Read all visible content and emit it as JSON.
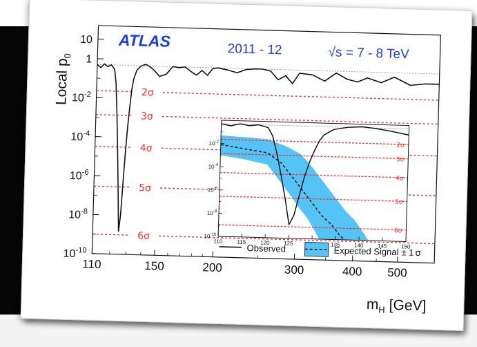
{
  "chart_data": [
    {
      "type": "line",
      "title": "",
      "experiment": "ATLAS",
      "period": "2011 - 12",
      "energy": "√s = 7 - 8 TeV",
      "xlabel": "m_H [GeV]",
      "xlabel_main": "m",
      "xlabel_sub": "H",
      "xlabel_unit": " [GeV]",
      "ylabel": "Local p_0",
      "ylabel_main": "Local p",
      "ylabel_sub": "0",
      "xscale": "log",
      "yscale": "log",
      "xlim": [
        110,
        600
      ],
      "ylim": [
        1e-10,
        50
      ],
      "x_ticks": [
        {
          "value": 110,
          "label": "110"
        },
        {
          "value": 150,
          "label": "150"
        },
        {
          "value": 200,
          "label": "200"
        },
        {
          "value": 300,
          "label": "300"
        },
        {
          "value": 400,
          "label": "400"
        },
        {
          "value": 500,
          "label": "500"
        }
      ],
      "y_ticks": [
        {
          "value": 10,
          "base": "10",
          "exp": ""
        },
        {
          "value": 1,
          "base": "1",
          "exp": ""
        },
        {
          "value": 0.01,
          "base": "10",
          "exp": "-2"
        },
        {
          "value": 0.0001,
          "base": "10",
          "exp": "-4"
        },
        {
          "value": 1e-06,
          "base": "10",
          "exp": "-6"
        },
        {
          "value": 1e-08,
          "base": "10",
          "exp": "-8"
        },
        {
          "value": 1e-10,
          "base": "10",
          "exp": "-10"
        }
      ],
      "sigma_lines": [
        {
          "label": "2σ",
          "p": 0.0228
        },
        {
          "label": "3σ",
          "p": 0.00135
        },
        {
          "label": "4σ",
          "p": 3.17e-05
        },
        {
          "label": "5σ",
          "p": 2.87e-07
        },
        {
          "label": "6σ",
          "p": 9.9e-10
        }
      ],
      "series": [
        {
          "name": "Observed",
          "style": "solid",
          "x": [
            110,
            112,
            114,
            116,
            118,
            120,
            121,
            122,
            123,
            124,
            125,
            126,
            127,
            128,
            129,
            130,
            131,
            132,
            134,
            137,
            140,
            143,
            146,
            150,
            155,
            160,
            165,
            170,
            175,
            180,
            185,
            190,
            195,
            200,
            210,
            220,
            230,
            240,
            250,
            260,
            270,
            280,
            290,
            300,
            320,
            340,
            360,
            380,
            400,
            420,
            450,
            480,
            520,
            560,
            600
          ],
          "y": [
            0.5,
            0.35,
            0.55,
            0.4,
            0.5,
            0.3,
            0.06,
            0.002,
            3e-05,
            3e-07,
            1.5e-09,
            1e-08,
            5e-07,
            2e-05,
            0.0004,
            0.004,
            0.03,
            0.1,
            0.3,
            0.5,
            0.6,
            0.45,
            0.3,
            0.15,
            0.2,
            0.5,
            0.45,
            0.5,
            0.3,
            0.2,
            0.35,
            0.2,
            0.45,
            0.5,
            0.4,
            0.3,
            0.45,
            0.5,
            0.5,
            0.4,
            0.15,
            0.25,
            0.1,
            0.35,
            0.3,
            0.15,
            0.4,
            0.2,
            0.15,
            0.25,
            0.15,
            0.3,
            0.12,
            0.15,
            0.15
          ]
        }
      ],
      "reference_line": 0.5
    },
    {
      "type": "line",
      "title": "",
      "xlim": [
        110,
        150
      ],
      "ylim": [
        1e-10,
        1
      ],
      "xscale": "linear",
      "yscale": "log",
      "x_ticks": [
        110,
        115,
        120,
        125,
        130,
        135,
        140,
        145,
        150
      ],
      "y_ticks": [
        {
          "value": 0.01,
          "exp": "-2"
        },
        {
          "value": 0.0001,
          "exp": "-4"
        },
        {
          "value": 1e-06,
          "exp": "-6"
        },
        {
          "value": 1e-08,
          "exp": "-8"
        },
        {
          "value": 1e-10,
          "exp": "-10"
        }
      ],
      "series": [
        {
          "name": "Observed",
          "style": "solid",
          "x": [
            110,
            112,
            114,
            116,
            118,
            120,
            121,
            122,
            123,
            124,
            125,
            126,
            127,
            128,
            129,
            130,
            131,
            132,
            134,
            137,
            140,
            143,
            146,
            150
          ],
          "y": [
            0.5,
            0.35,
            0.55,
            0.4,
            0.5,
            0.3,
            0.06,
            0.002,
            3e-05,
            3e-07,
            1.5e-09,
            1e-08,
            5e-07,
            2e-05,
            0.0004,
            0.004,
            0.03,
            0.1,
            0.3,
            0.5,
            0.6,
            0.45,
            0.3,
            0.15
          ]
        },
        {
          "name": "Expected Signal ± 1σ",
          "style": "dashed",
          "x": [
            110,
            115,
            120,
            123,
            126,
            128,
            130,
            132,
            134,
            136,
            137
          ],
          "y": [
            0.008,
            0.004,
            0.002,
            0.0003,
            1e-05,
            1e-06,
            1e-07,
            1e-08,
            2e-09,
            2e-10,
            1e-10
          ],
          "band_upper": [
            0.05,
            0.04,
            0.03,
            0.008,
            0.002,
            0.0003,
            3e-05,
            3e-06,
            3e-07,
            3e-08,
            5e-09,
            4e-10,
            1e-10
          ],
          "band_lower": [
            0.001,
            0.0005,
            0.0002,
            2e-06,
            5e-08,
            5e-09,
            5e-10,
            1e-10
          ],
          "band_x_upper": [
            110,
            115,
            120,
            124,
            127,
            129,
            131,
            133,
            135,
            137,
            139,
            141,
            142
          ],
          "band_x_lower": [
            110,
            115,
            120,
            124,
            127,
            129,
            130.5,
            131.5
          ]
        }
      ],
      "sigma_labels": [
        "2σ",
        "3σ",
        "4σ",
        "5σ",
        "6σ"
      ]
    }
  ],
  "legend": {
    "observed": "Observed",
    "expected_main": "Expected Signal",
    "expected_pm": "± 1",
    "expected_sigma": "σ"
  },
  "colors": {
    "sigma_line": "#ff2a2a",
    "band_fill": "#54c3f5",
    "experiment_text": "#1f3fe0",
    "reference_line": "#9a9a9a"
  }
}
